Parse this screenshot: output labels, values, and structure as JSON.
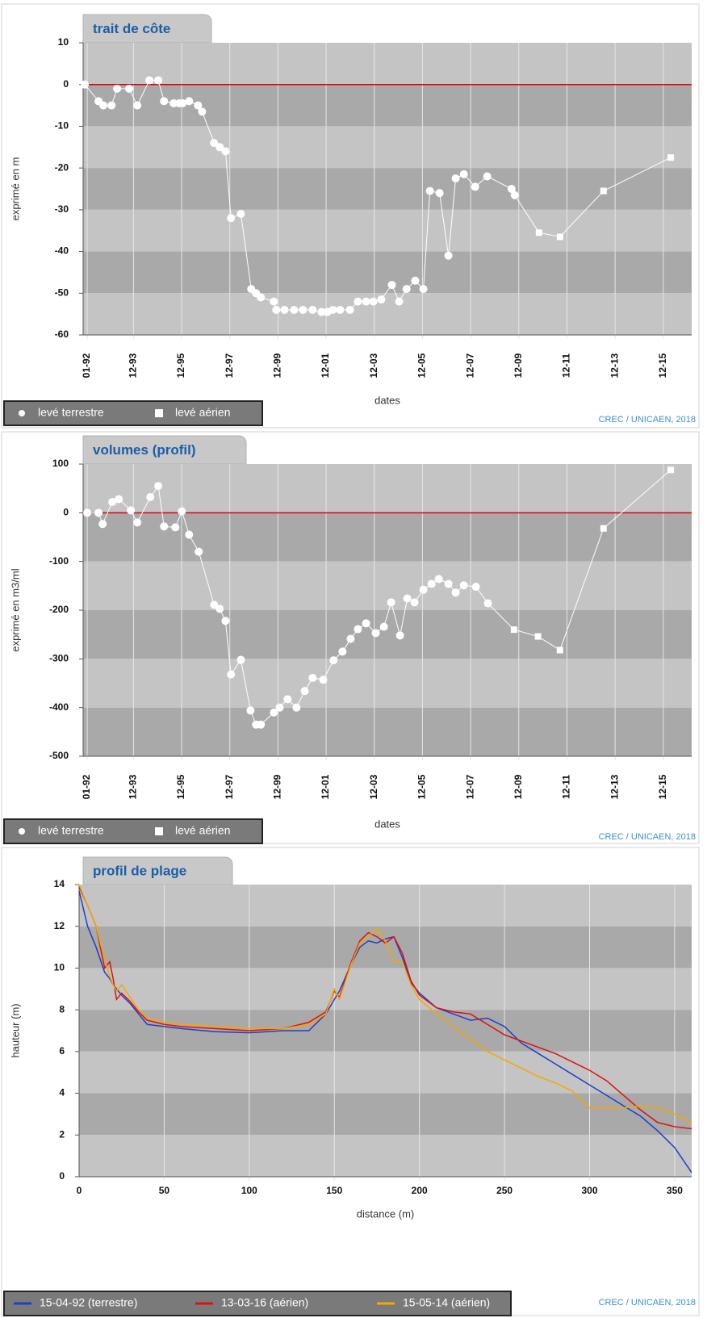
{
  "chart_data": [
    {
      "type": "scatter-line",
      "title": "trait de côte",
      "x_label": "dates",
      "y_label": "exprimé en m",
      "credit": "CREC / UNICAEN, 2018",
      "xlim": [
        1991.83,
        2017.1
      ],
      "ylim": [
        -60,
        10
      ],
      "xticks": [
        {
          "value": 1992.0,
          "label": "01-92"
        },
        {
          "value": 1993.92,
          "label": "12-93"
        },
        {
          "value": 1995.92,
          "label": "12-95"
        },
        {
          "value": 1997.92,
          "label": "12-97"
        },
        {
          "value": 1999.92,
          "label": "12-99"
        },
        {
          "value": 2001.92,
          "label": "12-01"
        },
        {
          "value": 2003.92,
          "label": "12-03"
        },
        {
          "value": 2005.92,
          "label": "12-05"
        },
        {
          "value": 2007.92,
          "label": "12-07"
        },
        {
          "value": 2009.92,
          "label": "12-09"
        },
        {
          "value": 2011.92,
          "label": "12-11"
        },
        {
          "value": 2013.92,
          "label": "12-13"
        },
        {
          "value": 2015.92,
          "label": "12-15"
        }
      ],
      "yticks": [
        10,
        0,
        -10,
        -20,
        -30,
        -40,
        -50,
        -60
      ],
      "reference_line": {
        "value": 0,
        "color": "#e00000"
      },
      "series": [
        {
          "name": "levé terrestre",
          "color": "#ffffff",
          "marker": "circle",
          "x": [
            1991.9,
            1992.47,
            1992.67,
            1993.01,
            1993.24,
            1993.74,
            1994.08,
            1994.58,
            1994.95,
            1995.19,
            1995.59,
            1995.82,
            1995.96,
            1996.23,
            1996.6,
            1996.77,
            1997.27,
            1997.5,
            1997.74,
            1997.97,
            1998.38,
            1998.81,
            1999.01,
            1999.21,
            1999.75,
            1999.85,
            2000.19,
            2000.59,
            2000.96,
            2001.36,
            2001.73,
            2001.97,
            2002.2,
            2002.5,
            2002.91,
            2003.24,
            2003.58,
            2003.88,
            2004.21,
            2004.65,
            2004.95,
            2005.26,
            2005.62,
            2005.96,
            2006.23,
            2006.63,
            2007.0,
            2007.3,
            2007.64,
            2008.11,
            2008.61,
            2009.62,
            2009.75
          ],
          "values": [
            0,
            -4,
            -5,
            -5,
            -1,
            -1,
            -5,
            1,
            1,
            -4,
            -4.5,
            -4.5,
            -4.5,
            -4,
            -5,
            -6.5,
            -14,
            -15,
            -16,
            -32,
            -31,
            -49,
            -50,
            -51,
            -52,
            -54,
            -54,
            -54,
            -54,
            -54,
            -54.5,
            -54.5,
            -54,
            -54,
            -54,
            -52,
            -52,
            -52,
            -51.5,
            -48,
            -52,
            -49,
            -47,
            -49,
            -25.5,
            -26,
            -41,
            -22.5,
            -21.5,
            -24.5,
            -22,
            -25,
            -26.5
          ]
        },
        {
          "name": "levé aérien",
          "color": "#ffffff",
          "marker": "square",
          "x": [
            2010.76,
            2011.63,
            2013.44,
            2016.23
          ],
          "values": [
            -35.5,
            -36.5,
            -25.5,
            -17.5
          ]
        }
      ]
    },
    {
      "type": "scatter-line",
      "title": "volumes (profil)",
      "x_label": "dates",
      "y_label": "exprimé en m3/ml",
      "credit": "CREC / UNICAEN, 2018",
      "xlim": [
        1991.83,
        2017.1
      ],
      "ylim": [
        -500,
        100
      ],
      "xticks": [
        {
          "value": 1992.0,
          "label": "01-92"
        },
        {
          "value": 1993.92,
          "label": "12-93"
        },
        {
          "value": 1995.92,
          "label": "12-95"
        },
        {
          "value": 1997.92,
          "label": "12-97"
        },
        {
          "value": 1999.92,
          "label": "12-99"
        },
        {
          "value": 2001.92,
          "label": "12-01"
        },
        {
          "value": 2003.92,
          "label": "12-03"
        },
        {
          "value": 2005.92,
          "label": "12-05"
        },
        {
          "value": 2007.92,
          "label": "12-07"
        },
        {
          "value": 2009.92,
          "label": "12-09"
        },
        {
          "value": 2011.92,
          "label": "12-11"
        },
        {
          "value": 2013.92,
          "label": "12-13"
        },
        {
          "value": 2015.92,
          "label": "12-15"
        }
      ],
      "yticks": [
        100,
        0,
        -100,
        -200,
        -300,
        -400,
        -500
      ],
      "reference_line": {
        "value": 0,
        "color": "#e00000"
      },
      "series": [
        {
          "name": "levé terrestre",
          "color": "#ffffff",
          "marker": "circle",
          "x": [
            1992.0,
            1992.47,
            1992.64,
            1993.04,
            1993.31,
            1993.81,
            1994.08,
            1994.62,
            1994.95,
            1995.19,
            1995.66,
            1995.93,
            1996.23,
            1996.63,
            1997.27,
            1997.5,
            1997.74,
            1997.97,
            1998.38,
            1998.78,
            1999.01,
            1999.21,
            1999.75,
            1999.99,
            2000.32,
            2000.69,
            2001.03,
            2001.36,
            2001.8,
            2002.23,
            2002.6,
            2002.94,
            2003.24,
            2003.58,
            2003.98,
            2004.32,
            2004.62,
            2004.99,
            2005.29,
            2005.59,
            2005.96,
            2006.3,
            2006.6,
            2007.0,
            2007.3,
            2007.64,
            2008.14,
            2008.64
          ],
          "values": [
            0,
            0,
            -23,
            22,
            28,
            5,
            -20,
            32,
            55,
            -28,
            -30,
            3,
            -45,
            -80,
            -189,
            -197,
            -222,
            -332,
            -302,
            -406,
            -435,
            -435,
            -410,
            -400,
            -383,
            -400,
            -366,
            -339,
            -343,
            -303,
            -285,
            -259,
            -239,
            -227,
            -247,
            -234,
            -184,
            -252,
            -176,
            -184,
            -158,
            -146,
            -136,
            -146,
            -164,
            -149,
            -152,
            -186
          ]
        },
        {
          "name": "levé aérien",
          "color": "#ffffff",
          "marker": "square",
          "x": [
            2009.72,
            2010.72,
            2011.63,
            2013.44,
            2016.23
          ],
          "values": [
            -240,
            -254,
            -282,
            -32,
            88
          ]
        }
      ]
    },
    {
      "type": "line",
      "title": "profil de plage",
      "x_label": "distance (m)",
      "y_label": "hauteur (m)",
      "credit": "CREC / UNICAEN, 2018",
      "xlim": [
        0,
        360
      ],
      "ylim": [
        0,
        14
      ],
      "xticks": [
        0,
        50,
        100,
        150,
        200,
        250,
        300,
        350
      ],
      "yticks": [
        0,
        2,
        4,
        6,
        8,
        10,
        12,
        14
      ],
      "x": [
        0,
        5,
        10,
        15,
        18,
        20,
        22,
        25,
        30,
        35,
        40,
        50,
        60,
        80,
        100,
        120,
        135,
        145,
        150,
        153,
        160,
        165,
        170,
        175,
        180,
        185,
        190,
        195,
        200,
        210,
        220,
        230,
        240,
        250,
        260,
        270,
        280,
        290,
        300,
        310,
        320,
        330,
        340,
        350,
        360
      ],
      "series": [
        {
          "name": "15-04-92 (terrestre)",
          "color": "#1f3fc8",
          "values": [
            13.7,
            12,
            11,
            9.8,
            9.5,
            9.2,
            9,
            8.7,
            8.3,
            7.8,
            7.3,
            7.2,
            7.1,
            6.95,
            6.9,
            7,
            7,
            7.8,
            8.5,
            8.9,
            10.2,
            11,
            11.3,
            11.2,
            11.4,
            11.5,
            10.5,
            9.3,
            8.8,
            8.1,
            7.8,
            7.5,
            7.6,
            7.2,
            6.4,
            5.9,
            5.4,
            4.9,
            4.4,
            3.9,
            3.4,
            2.9,
            2.2,
            1.4,
            0.2
          ]
        },
        {
          "name": "13-03-16 (aérien)",
          "color": "#e01010",
          "values": [
            13.9,
            13,
            12,
            10,
            10.3,
            9.5,
            8.5,
            8.8,
            8.4,
            7.9,
            7.5,
            7.3,
            7.2,
            7.1,
            7.0,
            7.1,
            7.4,
            7.9,
            8.9,
            8.6,
            10.3,
            11.3,
            11.7,
            11.5,
            11.2,
            11.5,
            10.7,
            9.4,
            8.7,
            8.1,
            7.9,
            7.8,
            7.3,
            6.8,
            6.5,
            6.2,
            5.9,
            5.5,
            5.1,
            4.6,
            3.9,
            3.2,
            2.6,
            2.4,
            2.3
          ]
        },
        {
          "name": "15-05-14 (aérien)",
          "color": "#f5a800",
          "values": [
            14,
            13,
            12,
            10.4,
            9.6,
            9.2,
            8.9,
            9.2,
            8.6,
            8,
            7.6,
            7.4,
            7.3,
            7.2,
            7.1,
            7.1,
            7.3,
            7.8,
            9,
            8.5,
            10.2,
            11.2,
            11.5,
            11.9,
            11.3,
            10.3,
            10.3,
            9.2,
            8.5,
            7.8,
            7.2,
            6.6,
            6,
            5.6,
            5.2,
            4.8,
            4.5,
            4.1,
            3.3,
            3.3,
            3.3,
            3.4,
            3.3,
            3.0,
            2.6
          ]
        }
      ]
    }
  ]
}
